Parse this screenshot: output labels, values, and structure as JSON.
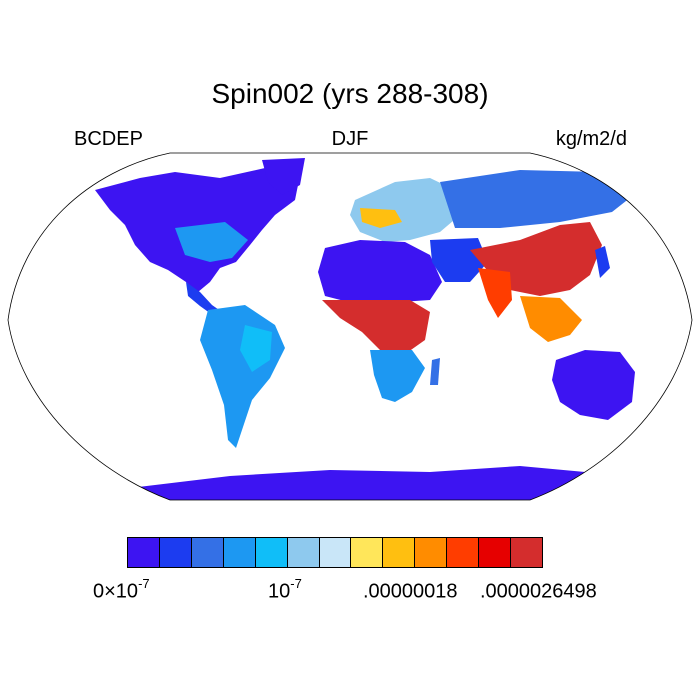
{
  "title": "Spin002 (yrs 288-308)",
  "left_label": "BCDEP",
  "center_label": "DJF",
  "right_label": "kg/m2/d",
  "colorbar": {
    "colors": [
      "#3d14f2",
      "#1c3cf0",
      "#3470e6",
      "#1d98f2",
      "#10bef8",
      "#8ec9ee",
      "#c9e6f8",
      "#ffe65a",
      "#ffbf10",
      "#ff8c00",
      "#ff3d00",
      "#e60000",
      "#d42d2d"
    ],
    "tick_labels": [
      {
        "base": "0×10",
        "exp": "-7"
      },
      {
        "base": "10",
        "exp": "-7"
      },
      {
        "base": ".00000018",
        "exp": ""
      },
      {
        "base": ".0000026498",
        "exp": ""
      }
    ]
  },
  "palette": {
    "ocean": "#ffffff",
    "low": "#3d14f2",
    "mid": "#10bef8",
    "high": "#d42d2d"
  }
}
